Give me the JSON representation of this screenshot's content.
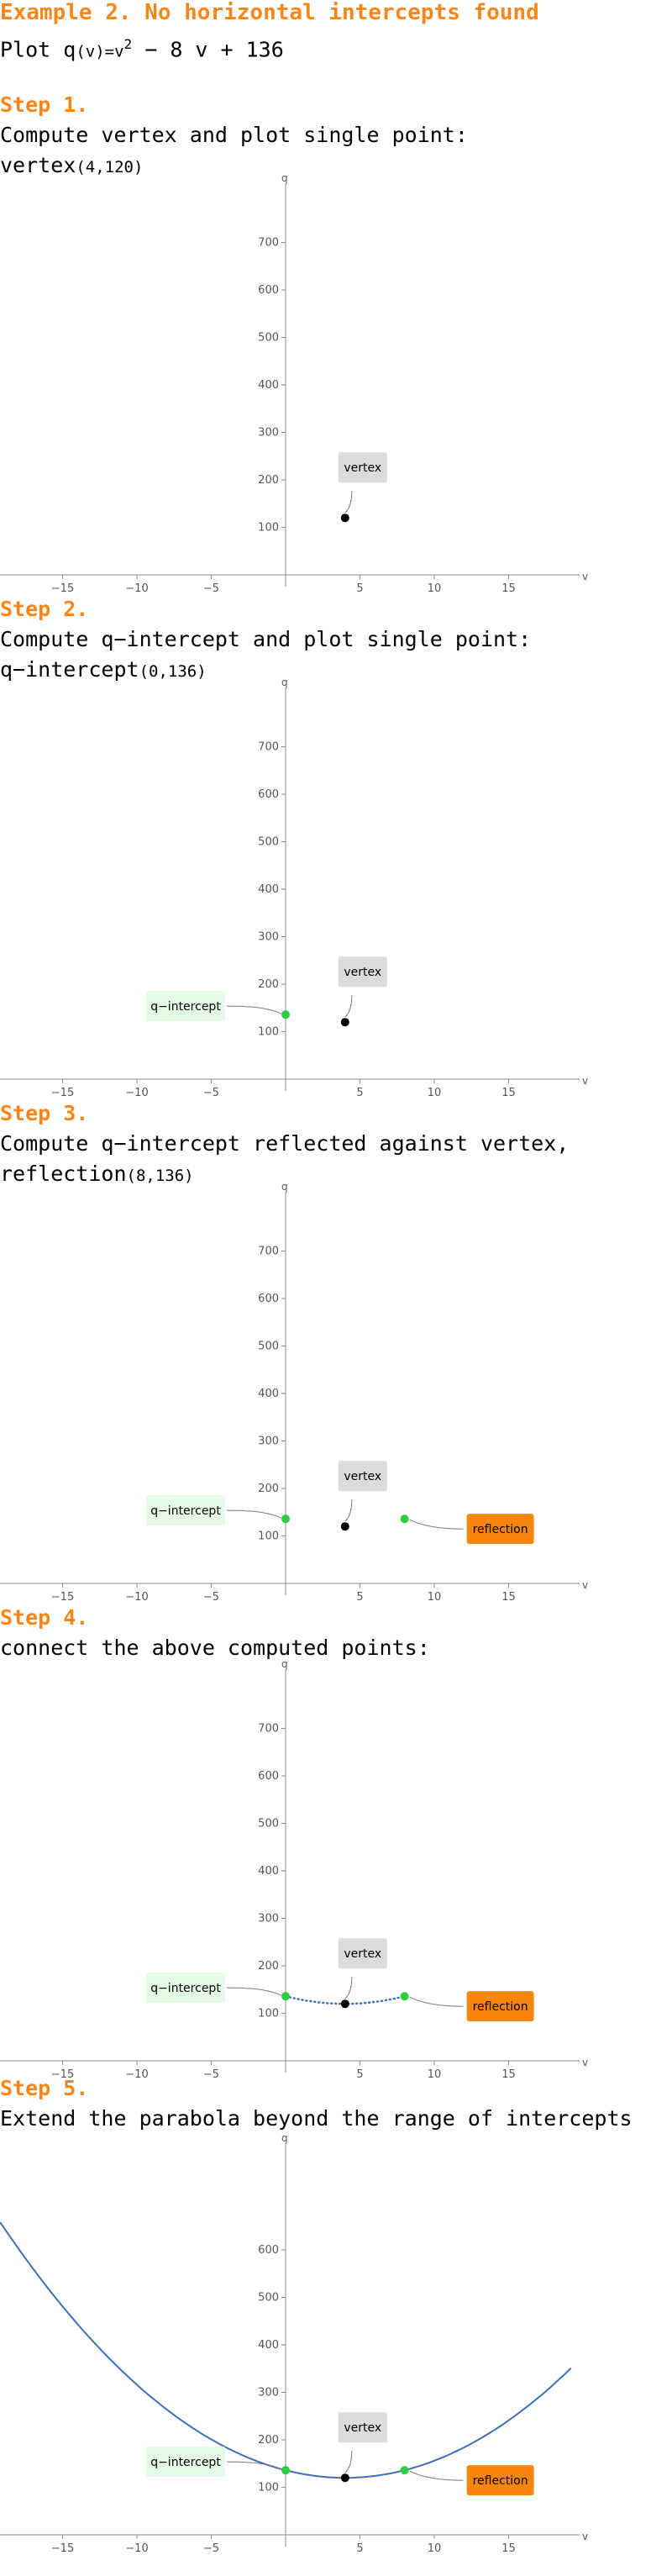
{
  "title": "Example 2. No horizontal intercepts found",
  "plot_prefix": "Plot q",
  "plot_var": "(v)",
  "plot_eq": "=v",
  "plot_exp": "2",
  "plot_rest": " − 8 v + 136",
  "colors": {
    "accent": "#f7861a",
    "curve": "#3f6fb5",
    "vertex": "#000000",
    "intercept_point": "#2ecc40",
    "intercept_box": "#e6fbe6",
    "vertex_box": "#dcdcdc",
    "reflection_box": "#f7860e"
  },
  "labels": {
    "vertex": "vertex",
    "q_intercept": "q−intercept",
    "reflection": "reflection"
  },
  "steps": [
    {
      "title": "Step 1.",
      "desc": "Compute vertex and plot single point:",
      "sub_name": "vertex",
      "sub_value": "(4,120)"
    },
    {
      "title": "Step 2.",
      "desc": "Compute q−intercept and plot single point:",
      "sub_name": "q−intercept",
      "sub_value": "(0,136)"
    },
    {
      "title": "Step 3.",
      "desc": "Compute q−intercept reflected against vertex,",
      "sub_name": "reflection",
      "sub_value": "(8,136)"
    },
    {
      "title": "Step 4.",
      "desc": "connect the above computed points:",
      "sub_name": "",
      "sub_value": ""
    },
    {
      "title": "Step 5.",
      "desc": "Extend the parabola beyond the range of intercepts",
      "sub_name": "",
      "sub_value": ""
    }
  ],
  "chart_data": [
    {
      "type": "scatter",
      "xlabel": "v",
      "ylabel": "q",
      "xlim": [
        -19,
        20
      ],
      "ylim": [
        -40,
        700
      ],
      "xticks": [
        -15,
        -10,
        -5,
        5,
        10,
        15
      ],
      "yticks": [
        100,
        200,
        300,
        400,
        500,
        600,
        700
      ],
      "points": [
        {
          "name": "vertex",
          "x": 4,
          "y": 120
        }
      ]
    },
    {
      "type": "scatter",
      "xlabel": "v",
      "ylabel": "q",
      "xlim": [
        -19,
        20
      ],
      "ylim": [
        -40,
        700
      ],
      "xticks": [
        -15,
        -10,
        -5,
        5,
        10,
        15
      ],
      "yticks": [
        100,
        200,
        300,
        400,
        500,
        600,
        700
      ],
      "points": [
        {
          "name": "vertex",
          "x": 4,
          "y": 120
        },
        {
          "name": "q−intercept",
          "x": 0,
          "y": 136
        }
      ]
    },
    {
      "type": "scatter",
      "xlabel": "v",
      "ylabel": "q",
      "xlim": [
        -19,
        20
      ],
      "ylim": [
        -40,
        700
      ],
      "xticks": [
        -15,
        -10,
        -5,
        5,
        10,
        15
      ],
      "yticks": [
        100,
        200,
        300,
        400,
        500,
        600,
        700
      ],
      "points": [
        {
          "name": "vertex",
          "x": 4,
          "y": 120
        },
        {
          "name": "q−intercept",
          "x": 0,
          "y": 136
        },
        {
          "name": "reflection",
          "x": 8,
          "y": 136
        }
      ]
    },
    {
      "type": "line",
      "xlabel": "v",
      "ylabel": "q",
      "xlim": [
        -19,
        20
      ],
      "ylim": [
        -40,
        700
      ],
      "xticks": [
        -15,
        -10,
        -5,
        5,
        10,
        15
      ],
      "yticks": [
        100,
        200,
        300,
        400,
        500,
        600,
        700
      ],
      "points": [
        {
          "name": "vertex",
          "x": 4,
          "y": 120
        },
        {
          "name": "q−intercept",
          "x": 0,
          "y": 136
        },
        {
          "name": "reflection",
          "x": 8,
          "y": 136
        }
      ],
      "curve": {
        "style": "dotted",
        "x_range": [
          0,
          8
        ],
        "a": 1,
        "b": -8,
        "c": 136
      }
    },
    {
      "type": "line",
      "xlabel": "v",
      "ylabel": "q",
      "xlim": [
        -20,
        20
      ],
      "ylim": [
        -40,
        700
      ],
      "xticks": [
        -15,
        -10,
        -5,
        5,
        10,
        15
      ],
      "yticks": [
        100,
        200,
        300,
        400,
        500,
        600
      ],
      "points": [
        {
          "name": "vertex",
          "x": 4,
          "y": 120
        },
        {
          "name": "q−intercept",
          "x": 0,
          "y": 136
        },
        {
          "name": "reflection",
          "x": 8,
          "y": 136
        }
      ],
      "curve": {
        "style": "solid",
        "x_range": [
          -19.2,
          19.2
        ],
        "a": 1,
        "b": -8,
        "c": 136
      }
    }
  ]
}
